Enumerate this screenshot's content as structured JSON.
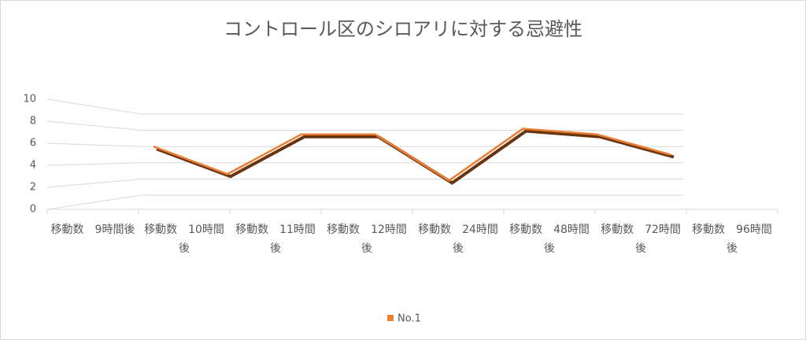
{
  "chart_data": {
    "type": "line",
    "title": "コントロール区のシロアリに対する忌避性",
    "categories": [
      "移動数　9時間後",
      "移動数　10時間後",
      "移動数　11時間後",
      "移動数　12時間後",
      "移動数　24時間後",
      "移動数　48時間後",
      "移動数　72時間後",
      "移動数　96時間後"
    ],
    "series": [
      {
        "name": "No.1",
        "color": "#ed7d31",
        "values": [
          6,
          2.6,
          7.5,
          7.5,
          1.8,
          8.2,
          7.5,
          5
        ]
      }
    ],
    "ylim": [
      0,
      10
    ],
    "yticks": [
      0,
      2,
      4,
      6,
      8,
      10
    ],
    "grid": true,
    "legend": "bottom"
  }
}
